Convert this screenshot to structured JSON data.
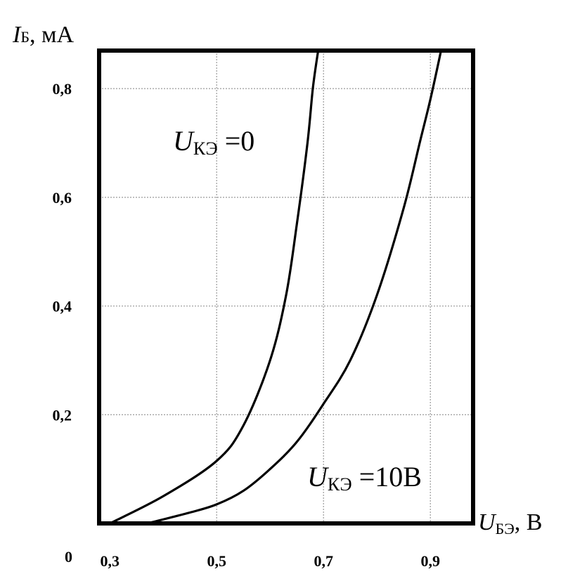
{
  "chart_data": {
    "type": "line",
    "xlabel": {
      "main": "U",
      "sub": "БЭ",
      "unit": ", В"
    },
    "ylabel": {
      "main": "I",
      "sub": "Б",
      "unit": ", мА"
    },
    "xlim": [
      0.28,
      0.98
    ],
    "ylim": [
      0,
      0.87
    ],
    "x_ticks": [
      0.3,
      0.5,
      0.7,
      0.9
    ],
    "x_tick_labels": [
      "0,3",
      "0,5",
      "0,7",
      "0,9"
    ],
    "y_ticks": [
      0.2,
      0.4,
      0.6,
      0.8
    ],
    "y_tick_labels": [
      "0,2",
      "0,4",
      "0,6",
      "0,8"
    ],
    "origin_label": "0",
    "grid": true,
    "series": [
      {
        "name": "U_КЭ = 0",
        "label": {
          "main": "U",
          "sub": "КЭ",
          "value": " =0"
        },
        "x": [
          0.3,
          0.4,
          0.5,
          0.55,
          0.6,
          0.63,
          0.65,
          0.67,
          0.68,
          0.69
        ],
        "y": [
          0.0,
          0.05,
          0.115,
          0.18,
          0.3,
          0.42,
          0.55,
          0.7,
          0.8,
          0.87
        ]
      },
      {
        "name": "U_КЭ = 10В",
        "label": {
          "main": "U",
          "sub": "КЭ",
          "value": " =10В"
        },
        "x": [
          0.37,
          0.45,
          0.5,
          0.55,
          0.6,
          0.65,
          0.7,
          0.75,
          0.8,
          0.85,
          0.88,
          0.9,
          0.92
        ],
        "y": [
          0.0,
          0.02,
          0.035,
          0.06,
          0.1,
          0.15,
          0.22,
          0.3,
          0.42,
          0.58,
          0.7,
          0.78,
          0.87
        ]
      }
    ]
  }
}
